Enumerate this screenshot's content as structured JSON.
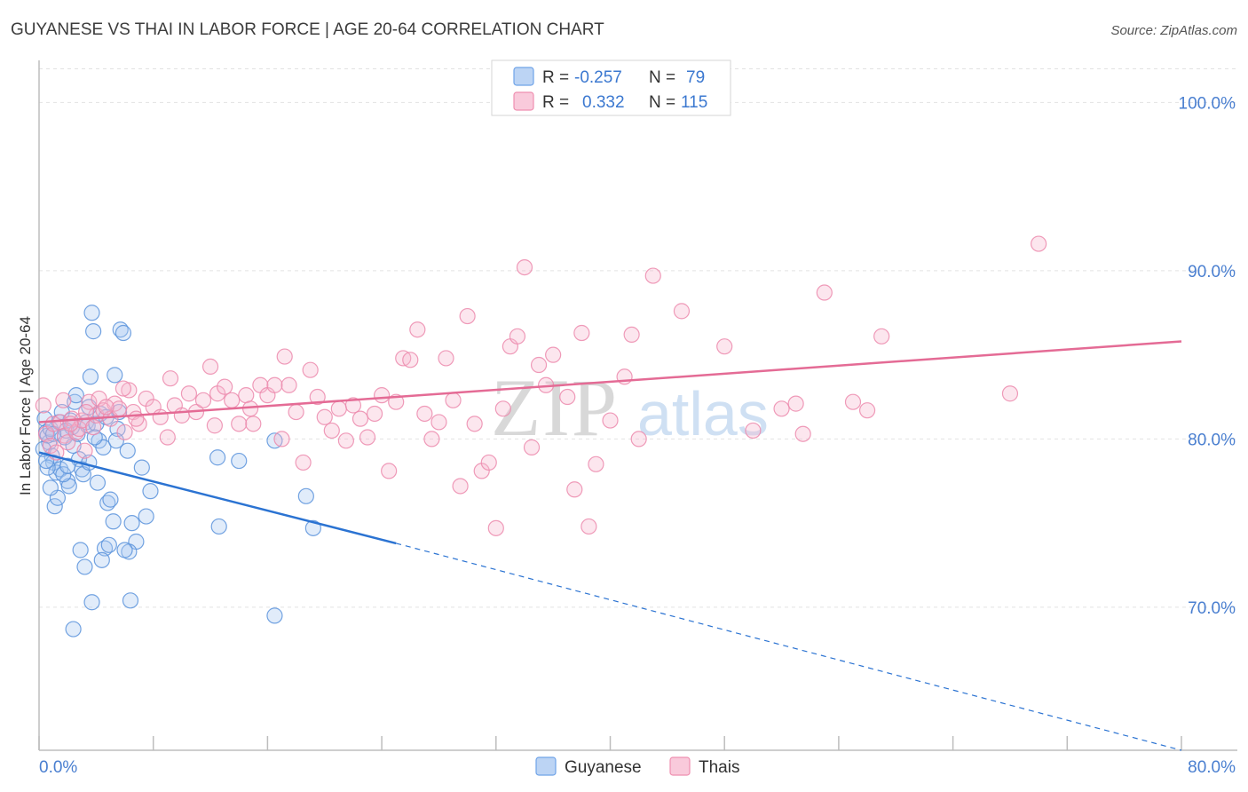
{
  "chart_data": {
    "type": "scatter",
    "title": "GUYANESE VS THAI IN LABOR FORCE | AGE 20-64 CORRELATION CHART",
    "source": "Source: ZipAtlas.com",
    "ylabel": "In Labor Force | Age 20-64",
    "xlim": [
      0,
      80
    ],
    "ylim": [
      61.5,
      102.5
    ],
    "x_tick_labels": [
      "0.0%",
      "80.0%"
    ],
    "y_ticks": [
      {
        "value": 70,
        "label": "70.0%"
      },
      {
        "value": 80,
        "label": "80.0%"
      },
      {
        "value": 90,
        "label": "90.0%"
      },
      {
        "value": 100,
        "label": "100.0%"
      }
    ],
    "watermark": {
      "zip": "ZIP",
      "atlas": "atlas"
    },
    "legend": [
      {
        "r_label": "R =",
        "r_value": "-0.257",
        "n_label": "N =",
        "n_value": "79",
        "color": "#6fa3e8",
        "fill": "#bcd4f4"
      },
      {
        "r_label": "R =",
        "r_value": "0.332",
        "n_label": "N =",
        "n_value": "115",
        "color": "#ef8fb0",
        "fill": "#f9cadb"
      }
    ],
    "series": [
      {
        "name": "Guyanese",
        "color": "#5b93dc",
        "line_color": "#2b73d2",
        "trend": {
          "x0": 0,
          "y0": 79.2,
          "x1": 25,
          "y1": 73.8,
          "dash_x1": 80,
          "dash_y1": 61.5
        },
        "points": [
          [
            0.4,
            81.2
          ],
          [
            0.5,
            80.4
          ],
          [
            0.7,
            79.8
          ],
          [
            0.6,
            80.2
          ],
          [
            0.9,
            79.0
          ],
          [
            1.0,
            78.6
          ],
          [
            0.8,
            80.6
          ],
          [
            1.2,
            78.0
          ],
          [
            1.1,
            76.0
          ],
          [
            1.3,
            76.5
          ],
          [
            1.5,
            78.2
          ],
          [
            1.4,
            81.0
          ],
          [
            1.6,
            81.6
          ],
          [
            1.8,
            80.1
          ],
          [
            2.0,
            77.5
          ],
          [
            2.1,
            77.2
          ],
          [
            2.2,
            81.1
          ],
          [
            2.4,
            79.6
          ],
          [
            2.5,
            82.2
          ],
          [
            2.7,
            80.3
          ],
          [
            2.8,
            78.8
          ],
          [
            3.0,
            78.2
          ],
          [
            3.1,
            77.9
          ],
          [
            2.6,
            82.6
          ],
          [
            3.3,
            81.0
          ],
          [
            3.4,
            80.8
          ],
          [
            3.5,
            78.6
          ],
          [
            3.6,
            83.7
          ],
          [
            3.7,
            87.5
          ],
          [
            3.8,
            86.4
          ],
          [
            4.0,
            80.9
          ],
          [
            4.2,
            79.9
          ],
          [
            4.1,
            77.4
          ],
          [
            4.3,
            81.5
          ],
          [
            4.5,
            79.5
          ],
          [
            4.6,
            73.5
          ],
          [
            4.8,
            76.2
          ],
          [
            5.0,
            76.4
          ],
          [
            5.2,
            75.1
          ],
          [
            5.3,
            83.8
          ],
          [
            5.5,
            80.6
          ],
          [
            5.6,
            81.6
          ],
          [
            5.7,
            86.5
          ],
          [
            5.9,
            86.3
          ],
          [
            6.2,
            79.3
          ],
          [
            6.4,
            70.4
          ],
          [
            6.5,
            75.0
          ],
          [
            6.8,
            73.9
          ],
          [
            6.3,
            73.3
          ],
          [
            7.2,
            78.3
          ],
          [
            7.5,
            75.4
          ],
          [
            7.8,
            76.9
          ],
          [
            3.2,
            72.4
          ],
          [
            2.9,
            73.4
          ],
          [
            2.4,
            68.7
          ],
          [
            3.7,
            70.3
          ],
          [
            4.4,
            72.8
          ],
          [
            4.9,
            73.7
          ],
          [
            6.0,
            73.4
          ],
          [
            12.5,
            78.9
          ],
          [
            14.0,
            78.7
          ],
          [
            16.5,
            79.9
          ],
          [
            18.7,
            76.6
          ],
          [
            19.2,
            74.7
          ],
          [
            12.6,
            74.8
          ],
          [
            16.5,
            69.5
          ],
          [
            0.3,
            79.4
          ],
          [
            0.6,
            78.3
          ],
          [
            0.8,
            77.1
          ],
          [
            1.7,
            77.9
          ],
          [
            2.3,
            80.7
          ],
          [
            1.9,
            80.5
          ],
          [
            3.9,
            80.1
          ],
          [
            4.7,
            81.3
          ],
          [
            5.4,
            79.9
          ],
          [
            1.0,
            80.3
          ],
          [
            0.5,
            78.7
          ],
          [
            2.0,
            78.4
          ],
          [
            3.5,
            81.9
          ]
        ]
      },
      {
        "name": "Thais",
        "color": "#ec8aad",
        "line_color": "#e46b95",
        "trend": {
          "x0": 0,
          "y0": 81.0,
          "x1": 80,
          "y1": 85.8
        },
        "points": [
          [
            0.5,
            80.3
          ],
          [
            0.8,
            79.6
          ],
          [
            1.0,
            80.9
          ],
          [
            1.2,
            79.2
          ],
          [
            1.5,
            81.0
          ],
          [
            1.8,
            80.2
          ],
          [
            2.0,
            79.8
          ],
          [
            2.3,
            81.2
          ],
          [
            2.6,
            80.4
          ],
          [
            2.8,
            80.6
          ],
          [
            3.0,
            81.1
          ],
          [
            3.2,
            79.3
          ],
          [
            3.5,
            82.2
          ],
          [
            3.8,
            80.7
          ],
          [
            4.0,
            81.4
          ],
          [
            4.2,
            82.4
          ],
          [
            4.5,
            81.7
          ],
          [
            5.0,
            81.2
          ],
          [
            5.3,
            82.1
          ],
          [
            5.6,
            81.8
          ],
          [
            6.0,
            80.4
          ],
          [
            6.3,
            82.9
          ],
          [
            6.6,
            81.6
          ],
          [
            7.0,
            80.9
          ],
          [
            7.5,
            82.4
          ],
          [
            8.0,
            81.9
          ],
          [
            8.5,
            81.3
          ],
          [
            9.0,
            80.1
          ],
          [
            9.5,
            82.0
          ],
          [
            10.0,
            81.4
          ],
          [
            10.5,
            82.7
          ],
          [
            11.0,
            81.6
          ],
          [
            11.5,
            82.3
          ],
          [
            12.0,
            84.3
          ],
          [
            12.5,
            82.7
          ],
          [
            13.0,
            83.1
          ],
          [
            13.5,
            82.3
          ],
          [
            14.0,
            80.9
          ],
          [
            14.5,
            82.6
          ],
          [
            15.0,
            80.9
          ],
          [
            15.5,
            83.2
          ],
          [
            16.0,
            82.6
          ],
          [
            16.5,
            83.2
          ],
          [
            17.0,
            80.0
          ],
          [
            17.5,
            83.2
          ],
          [
            18.0,
            81.6
          ],
          [
            18.5,
            78.6
          ],
          [
            19.0,
            84.1
          ],
          [
            19.5,
            82.5
          ],
          [
            20.0,
            81.3
          ],
          [
            20.5,
            80.5
          ],
          [
            21.0,
            81.8
          ],
          [
            21.5,
            79.9
          ],
          [
            22.0,
            82.0
          ],
          [
            22.5,
            81.2
          ],
          [
            23.0,
            80.1
          ],
          [
            23.5,
            81.5
          ],
          [
            24.0,
            82.6
          ],
          [
            24.5,
            78.1
          ],
          [
            25.0,
            82.2
          ],
          [
            25.5,
            84.8
          ],
          [
            26.0,
            84.7
          ],
          [
            26.5,
            86.5
          ],
          [
            27.0,
            81.5
          ],
          [
            27.5,
            80.0
          ],
          [
            28.0,
            81.0
          ],
          [
            28.5,
            84.8
          ],
          [
            29.0,
            82.3
          ],
          [
            29.5,
            77.2
          ],
          [
            30.0,
            87.3
          ],
          [
            30.5,
            80.9
          ],
          [
            31.0,
            78.1
          ],
          [
            31.5,
            78.6
          ],
          [
            32.0,
            74.7
          ],
          [
            32.5,
            81.8
          ],
          [
            33.0,
            85.5
          ],
          [
            33.5,
            86.1
          ],
          [
            34.0,
            90.2
          ],
          [
            34.5,
            79.5
          ],
          [
            35.0,
            84.4
          ],
          [
            35.5,
            83.2
          ],
          [
            36.0,
            85.0
          ],
          [
            37.0,
            82.5
          ],
          [
            37.5,
            77.0
          ],
          [
            38.0,
            86.3
          ],
          [
            38.5,
            74.8
          ],
          [
            39.0,
            78.5
          ],
          [
            40.0,
            81.1
          ],
          [
            41.0,
            83.7
          ],
          [
            41.5,
            86.2
          ],
          [
            42.0,
            80.0
          ],
          [
            43.0,
            89.7
          ],
          [
            45.0,
            87.6
          ],
          [
            48.0,
            85.5
          ],
          [
            50.0,
            80.5
          ],
          [
            52.0,
            81.8
          ],
          [
            53.0,
            82.1
          ],
          [
            53.5,
            80.3
          ],
          [
            55.0,
            88.7
          ],
          [
            57.0,
            82.2
          ],
          [
            58.0,
            81.7
          ],
          [
            59.0,
            86.1
          ],
          [
            68.0,
            82.7
          ],
          [
            70.0,
            91.6
          ],
          [
            0.3,
            82.0
          ],
          [
            1.7,
            82.3
          ],
          [
            2.2,
            80.9
          ],
          [
            3.3,
            81.6
          ],
          [
            4.7,
            81.9
          ],
          [
            5.9,
            83.0
          ],
          [
            6.8,
            81.2
          ],
          [
            9.2,
            83.6
          ],
          [
            12.3,
            80.8
          ],
          [
            14.8,
            81.8
          ],
          [
            17.2,
            84.9
          ]
        ]
      }
    ],
    "bottom_legend": [
      "Guyanese",
      "Thais"
    ]
  }
}
